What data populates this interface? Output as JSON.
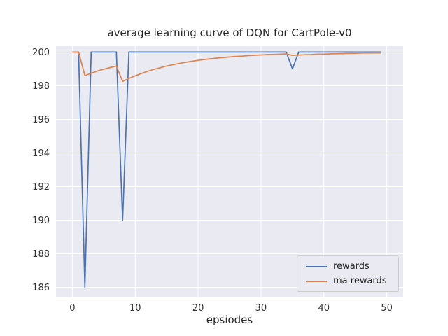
{
  "figure": {
    "title": "average learning curve of DQN for CartPole-v0",
    "xlabel": "epsiodes"
  },
  "chart_data": {
    "type": "line",
    "title": "average learning curve of DQN for CartPole-v0",
    "xlabel": "epsiodes",
    "ylabel": "",
    "grid": true,
    "legend_position": "lower right",
    "plot_bg": "#eaeaf2",
    "grid_color": "#ffffff",
    "tick_color": "#333333",
    "xlim": [
      -2.6,
      52.6
    ],
    "ylim": [
      185.4,
      200.35
    ],
    "xticks": [
      0,
      10,
      20,
      30,
      40,
      50
    ],
    "yticks": [
      186,
      188,
      190,
      192,
      194,
      196,
      198,
      200
    ],
    "x": [
      0,
      1,
      2,
      3,
      4,
      5,
      6,
      7,
      8,
      9,
      10,
      11,
      12,
      13,
      14,
      15,
      16,
      17,
      18,
      19,
      20,
      21,
      22,
      23,
      24,
      25,
      26,
      27,
      28,
      29,
      30,
      31,
      32,
      33,
      34,
      35,
      36,
      37,
      38,
      39,
      40,
      41,
      42,
      43,
      44,
      45,
      46,
      47,
      48,
      49
    ],
    "series": [
      {
        "name": "rewards",
        "color": "#4c72b0",
        "values": [
          200,
          200,
          186,
          200,
          200,
          200,
          200,
          200,
          190,
          200,
          200,
          200,
          200,
          200,
          200,
          200,
          200,
          200,
          200,
          200,
          200,
          200,
          200,
          200,
          200,
          200,
          200,
          200,
          200,
          200,
          200,
          200,
          200,
          200,
          200,
          199,
          200,
          200,
          200,
          200,
          200,
          200,
          200,
          200,
          200,
          200,
          200,
          200,
          200,
          200
        ]
      },
      {
        "name": "ma rewards",
        "color": "#dd8452",
        "values": [
          200,
          200,
          198.6,
          198.74,
          198.87,
          198.98,
          199.08,
          199.17,
          198.26,
          198.43,
          198.59,
          198.73,
          198.86,
          198.97,
          199.07,
          199.17,
          199.25,
          199.32,
          199.39,
          199.45,
          199.51,
          199.56,
          199.6,
          199.64,
          199.68,
          199.71,
          199.74,
          199.76,
          199.79,
          199.81,
          199.83,
          199.85,
          199.86,
          199.87,
          199.89,
          199.8,
          199.82,
          199.84,
          199.85,
          199.87,
          199.88,
          199.89,
          199.9,
          199.91,
          199.92,
          199.93,
          199.94,
          199.94,
          199.95,
          199.95
        ]
      }
    ]
  }
}
